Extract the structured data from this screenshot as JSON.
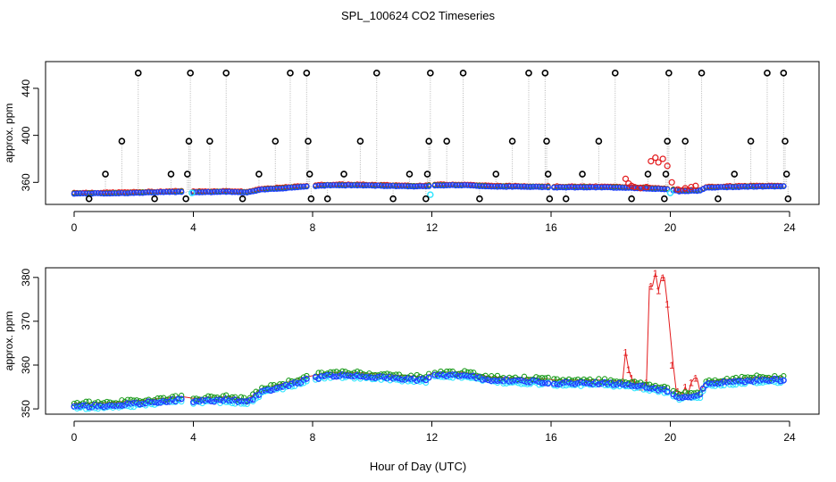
{
  "title": "SPL_100624  CO2 Timeseries",
  "xlabel": "Hour of Day (UTC)",
  "colors": {
    "outlier": "#000000",
    "series_red": "#e31a1c",
    "series_green": "#1a9b1a",
    "series_blue": "#1f3fff",
    "series_cyan": "#33e6ff",
    "connector": "#b5b5b5"
  },
  "chart_data": [
    {
      "type": "scatter",
      "panel": "top",
      "ylabel": "approx. ppm",
      "xlim": [
        0,
        24
      ],
      "ylim": [
        342,
        462
      ],
      "xticks": [
        0,
        4,
        8,
        12,
        16,
        20,
        24
      ],
      "yticks": [
        360,
        400,
        440
      ],
      "grid": false,
      "outlier_spikes": [
        {
          "x": 0.5,
          "y": 346
        },
        {
          "x": 1.05,
          "y": 367
        },
        {
          "x": 1.6,
          "y": 395
        },
        {
          "x": 2.15,
          "y": 453
        },
        {
          "x": 2.7,
          "y": 346
        },
        {
          "x": 3.25,
          "y": 367
        },
        {
          "x": 3.8,
          "y": 367
        },
        {
          "x": 3.85,
          "y": 395
        },
        {
          "x": 3.9,
          "y": 453
        },
        {
          "x": 3.75,
          "y": 346
        },
        {
          "x": 4.55,
          "y": 395
        },
        {
          "x": 5.1,
          "y": 453
        },
        {
          "x": 5.65,
          "y": 346
        },
        {
          "x": 6.2,
          "y": 367
        },
        {
          "x": 6.75,
          "y": 395
        },
        {
          "x": 7.25,
          "y": 453
        },
        {
          "x": 7.8,
          "y": 453
        },
        {
          "x": 7.85,
          "y": 395
        },
        {
          "x": 7.9,
          "y": 367
        },
        {
          "x": 7.95,
          "y": 346
        },
        {
          "x": 8.5,
          "y": 346
        },
        {
          "x": 9.05,
          "y": 367
        },
        {
          "x": 9.6,
          "y": 395
        },
        {
          "x": 10.15,
          "y": 453
        },
        {
          "x": 10.7,
          "y": 346
        },
        {
          "x": 11.25,
          "y": 367
        },
        {
          "x": 11.8,
          "y": 346
        },
        {
          "x": 11.85,
          "y": 367
        },
        {
          "x": 11.9,
          "y": 395
        },
        {
          "x": 11.95,
          "y": 453
        },
        {
          "x": 12.5,
          "y": 395
        },
        {
          "x": 13.05,
          "y": 453
        },
        {
          "x": 13.6,
          "y": 346
        },
        {
          "x": 14.15,
          "y": 367
        },
        {
          "x": 14.7,
          "y": 395
        },
        {
          "x": 15.25,
          "y": 453
        },
        {
          "x": 15.8,
          "y": 453
        },
        {
          "x": 15.85,
          "y": 395
        },
        {
          "x": 15.9,
          "y": 367
        },
        {
          "x": 15.95,
          "y": 346
        },
        {
          "x": 16.5,
          "y": 346
        },
        {
          "x": 17.05,
          "y": 367
        },
        {
          "x": 17.6,
          "y": 395
        },
        {
          "x": 18.15,
          "y": 453
        },
        {
          "x": 18.7,
          "y": 346
        },
        {
          "x": 19.25,
          "y": 367
        },
        {
          "x": 19.8,
          "y": 346
        },
        {
          "x": 19.85,
          "y": 367
        },
        {
          "x": 19.9,
          "y": 395
        },
        {
          "x": 19.95,
          "y": 453
        },
        {
          "x": 20.5,
          "y": 395
        },
        {
          "x": 21.05,
          "y": 453
        },
        {
          "x": 21.6,
          "y": 346
        },
        {
          "x": 22.15,
          "y": 367
        },
        {
          "x": 22.7,
          "y": 395
        },
        {
          "x": 23.25,
          "y": 453
        },
        {
          "x": 23.8,
          "y": 453
        },
        {
          "x": 23.85,
          "y": 395
        },
        {
          "x": 23.9,
          "y": 367
        },
        {
          "x": 23.95,
          "y": 346
        }
      ]
    },
    {
      "type": "scatter",
      "panel": "bottom",
      "ylabel": "approx. ppm",
      "xlim": [
        0,
        24
      ],
      "ylim": [
        349,
        382
      ],
      "xticks": [
        0,
        4,
        8,
        12,
        16,
        20,
        24
      ],
      "yticks": [
        350,
        360,
        370,
        380
      ],
      "grid": false,
      "point_label": "1",
      "red_excursion": [
        {
          "x": 18.5,
          "y": 363
        },
        {
          "x": 18.6,
          "y": 359
        },
        {
          "x": 18.7,
          "y": 357
        },
        {
          "x": 18.8,
          "y": 356
        },
        {
          "x": 19.0,
          "y": 355
        },
        {
          "x": 19.2,
          "y": 356
        },
        {
          "x": 19.35,
          "y": 378
        },
        {
          "x": 19.5,
          "y": 381
        },
        {
          "x": 19.6,
          "y": 377
        },
        {
          "x": 19.75,
          "y": 380
        },
        {
          "x": 19.9,
          "y": 374
        },
        {
          "x": 20.05,
          "y": 360
        },
        {
          "x": 20.25,
          "y": 354
        },
        {
          "x": 20.5,
          "y": 355
        },
        {
          "x": 20.7,
          "y": 356
        },
        {
          "x": 20.85,
          "y": 357
        }
      ]
    }
  ],
  "baseline_profile": [
    {
      "x": 0.0,
      "y": 350.5
    },
    {
      "x": 1.0,
      "y": 350.6
    },
    {
      "x": 2.0,
      "y": 351.0
    },
    {
      "x": 3.6,
      "y": 352.0
    },
    {
      "x": 4.0,
      "y": 351.6
    },
    {
      "x": 5.2,
      "y": 352.0
    },
    {
      "x": 5.8,
      "y": 351.3
    },
    {
      "x": 6.3,
      "y": 353.8
    },
    {
      "x": 7.0,
      "y": 355.0
    },
    {
      "x": 7.8,
      "y": 356.5
    },
    {
      "x": 8.5,
      "y": 357.5
    },
    {
      "x": 9.5,
      "y": 357.5
    },
    {
      "x": 10.5,
      "y": 357.0
    },
    {
      "x": 11.8,
      "y": 356.5
    },
    {
      "x": 12.0,
      "y": 357.5
    },
    {
      "x": 13.0,
      "y": 357.6
    },
    {
      "x": 14.0,
      "y": 356.5
    },
    {
      "x": 15.9,
      "y": 356.0
    },
    {
      "x": 16.0,
      "y": 355.8
    },
    {
      "x": 17.5,
      "y": 355.8
    },
    {
      "x": 18.5,
      "y": 355.5
    },
    {
      "x": 19.5,
      "y": 354.5
    },
    {
      "x": 20.0,
      "y": 353.8
    },
    {
      "x": 20.3,
      "y": 352.5
    },
    {
      "x": 21.0,
      "y": 353.0
    },
    {
      "x": 21.2,
      "y": 355.5
    },
    {
      "x": 22.0,
      "y": 356.0
    },
    {
      "x": 23.0,
      "y": 356.5
    },
    {
      "x": 23.8,
      "y": 356.5
    }
  ],
  "gaps": [
    [
      3.7,
      4.0
    ],
    [
      7.85,
      8.05
    ],
    [
      11.9,
      12.0
    ],
    [
      15.95,
      16.05
    ],
    [
      20.0,
      20.1
    ]
  ]
}
